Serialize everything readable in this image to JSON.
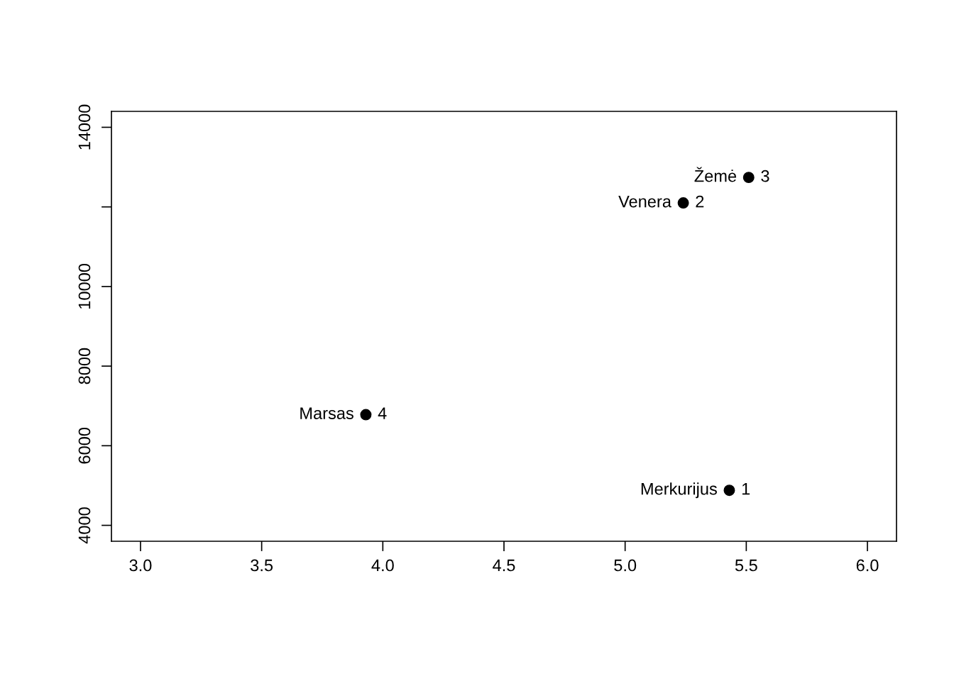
{
  "chart_data": {
    "type": "scatter",
    "x": [
      5.43,
      5.24,
      5.51,
      3.93
    ],
    "values": [
      4880,
      12100,
      12740,
      6780
    ],
    "color": "#000000",
    "marker": "circle",
    "xlim": [
      2.88,
      6.12
    ],
    "ylim": [
      3600,
      14400
    ],
    "xticks": [
      {
        "value": 3.0,
        "label": "3.0"
      },
      {
        "value": 3.5,
        "label": "3.5"
      },
      {
        "value": 4.0,
        "label": "4.0"
      },
      {
        "value": 4.5,
        "label": "4.5"
      },
      {
        "value": 5.0,
        "label": "5.0"
      },
      {
        "value": 5.5,
        "label": "5.5"
      },
      {
        "value": 6.0,
        "label": "6.0"
      }
    ],
    "yticks": [
      4000,
      6000,
      8000,
      10000,
      {
        "value": 12000,
        "label": null
      },
      14000
    ],
    "annotations": [
      {
        "text": "Merkurijus",
        "x": 5.43,
        "y": 4880
      },
      {
        "text": "Venera",
        "x": 5.24,
        "y": 12100
      },
      {
        "text": "Žemė",
        "x": 5.51,
        "y": 12740
      },
      {
        "text": "Marsas",
        "x": 3.93,
        "y": 6780
      },
      {
        "text": "1",
        "x": 5.43,
        "y": 4880
      },
      {
        "text": "2",
        "x": 5.24,
        "y": 12100
      },
      {
        "text": "3",
        "x": 5.51,
        "y": 12740
      },
      {
        "text": "4",
        "x": 3.93,
        "y": 6780
      }
    ],
    "grid": false
  }
}
